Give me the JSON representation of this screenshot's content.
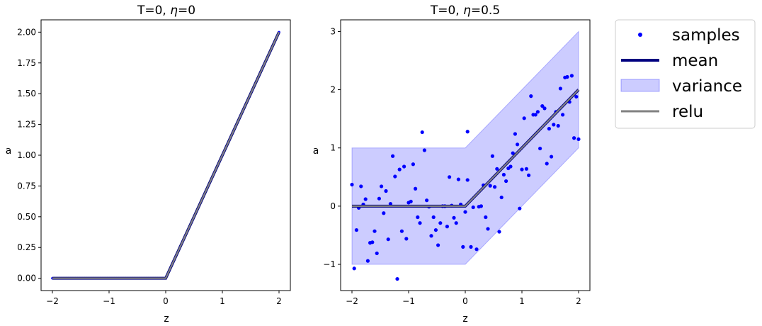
{
  "chart_data": [
    {
      "type": "line",
      "title_prefix": "T=0, ",
      "title_eta": "η",
      "title_suffix": "=0",
      "xlabel": "z",
      "ylabel": "a",
      "xlim": [
        -2.2,
        2.2
      ],
      "ylim": [
        -0.1,
        2.1
      ],
      "xticks": [
        -2,
        -1,
        0,
        1,
        2
      ],
      "xtick_labels": [
        "−2",
        "−1",
        "0",
        "1",
        "2"
      ],
      "yticks": [
        0,
        0.25,
        0.5,
        0.75,
        1.0,
        1.25,
        1.5,
        1.75,
        2.0
      ],
      "ytick_labels": [
        "0.00",
        "0.25",
        "0.50",
        "0.75",
        "1.00",
        "1.25",
        "1.50",
        "1.75",
        "2.00"
      ],
      "grid": false,
      "series": [
        {
          "name": "samples",
          "kind": "scatter",
          "color": "#0000ff",
          "note": "100 points on relu(z), z from -2 to 2",
          "n": 100
        },
        {
          "name": "mean",
          "kind": "line",
          "color": "#000080",
          "x": [
            -2,
            0,
            2
          ],
          "y": [
            0,
            0,
            2
          ]
        },
        {
          "name": "variance",
          "kind": "band",
          "color": "#0000ff",
          "alpha": 0.2,
          "halfwidth": 0
        },
        {
          "name": "relu",
          "kind": "line",
          "color": "#808080",
          "x": [
            -2,
            0,
            2
          ],
          "y": [
            0,
            0,
            2
          ]
        }
      ]
    },
    {
      "type": "line",
      "title_prefix": "T=0, ",
      "title_eta": "η",
      "title_suffix": "=0.5",
      "xlabel": "z",
      "ylabel": "a",
      "xlim": [
        -2.2,
        2.2
      ],
      "ylim": [
        -1.45,
        3.2
      ],
      "xticks": [
        -2,
        -1,
        0,
        1,
        2
      ],
      "xtick_labels": [
        "−2",
        "−1",
        "0",
        "1",
        "2"
      ],
      "yticks": [
        -1,
        0,
        1,
        2,
        3
      ],
      "ytick_labels": [
        "−1",
        "0",
        "1",
        "2",
        "3"
      ],
      "grid": false,
      "series": [
        {
          "name": "samples",
          "kind": "scatter",
          "color": "#0000ff",
          "points": [
            [
              -2.0,
              0.37
            ],
            [
              -1.96,
              -1.07
            ],
            [
              -1.92,
              -0.41
            ],
            [
              -1.88,
              -0.03
            ],
            [
              -1.84,
              0.34
            ],
            [
              -1.8,
              0.03
            ],
            [
              -1.76,
              0.12
            ],
            [
              -1.72,
              -0.94
            ],
            [
              -1.68,
              -0.63
            ],
            [
              -1.64,
              -0.62
            ],
            [
              -1.6,
              -0.43
            ],
            [
              -1.56,
              -0.81
            ],
            [
              -1.52,
              0.13
            ],
            [
              -1.48,
              0.34
            ],
            [
              -1.44,
              -0.12
            ],
            [
              -1.4,
              0.26
            ],
            [
              -1.36,
              -0.57
            ],
            [
              -1.32,
              0.04
            ],
            [
              -1.28,
              0.86
            ],
            [
              -1.24,
              0.51
            ],
            [
              -1.2,
              -1.25
            ],
            [
              -1.16,
              0.63
            ],
            [
              -1.12,
              -0.43
            ],
            [
              -1.08,
              0.68
            ],
            [
              -1.04,
              -0.56
            ],
            [
              -1.0,
              0.06
            ],
            [
              -0.96,
              0.08
            ],
            [
              -0.92,
              0.72
            ],
            [
              -0.88,
              0.3
            ],
            [
              -0.84,
              -0.19
            ],
            [
              -0.8,
              -0.29
            ],
            [
              -0.76,
              1.27
            ],
            [
              -0.72,
              0.96
            ],
            [
              -0.68,
              0.1
            ],
            [
              -0.64,
              -0.01
            ],
            [
              -0.6,
              -0.51
            ],
            [
              -0.56,
              -0.19
            ],
            [
              -0.52,
              -0.41
            ],
            [
              -0.48,
              -0.67
            ],
            [
              -0.44,
              -0.29
            ],
            [
              -0.4,
              0.0
            ],
            [
              -0.36,
              0.0
            ],
            [
              -0.32,
              -0.35
            ],
            [
              -0.28,
              0.5
            ],
            [
              -0.24,
              0.01
            ],
            [
              -0.2,
              -0.2
            ],
            [
              -0.16,
              -0.29
            ],
            [
              -0.12,
              0.46
            ],
            [
              -0.08,
              0.03
            ],
            [
              -0.04,
              -0.7
            ],
            [
              0.0,
              -0.1
            ],
            [
              0.04,
              1.28
            ],
            [
              0.04,
              0.45
            ],
            [
              0.1,
              -0.7
            ],
            [
              0.14,
              -0.02
            ],
            [
              0.2,
              -0.74
            ],
            [
              0.24,
              -0.01
            ],
            [
              0.28,
              0.0
            ],
            [
              0.32,
              0.36
            ],
            [
              0.36,
              -0.19
            ],
            [
              0.4,
              -0.39
            ],
            [
              0.44,
              0.35
            ],
            [
              0.48,
              0.86
            ],
            [
              0.52,
              0.33
            ],
            [
              0.56,
              0.64
            ],
            [
              0.6,
              -0.44
            ],
            [
              0.64,
              0.15
            ],
            [
              0.68,
              0.54
            ],
            [
              0.72,
              0.43
            ],
            [
              0.76,
              0.65
            ],
            [
              0.8,
              0.68
            ],
            [
              0.84,
              0.91
            ],
            [
              0.88,
              1.24
            ],
            [
              0.92,
              1.06
            ],
            [
              0.96,
              -0.04
            ],
            [
              1.0,
              0.63
            ],
            [
              1.04,
              1.51
            ],
            [
              1.08,
              0.64
            ],
            [
              1.12,
              0.53
            ],
            [
              1.16,
              1.89
            ],
            [
              1.2,
              1.57
            ],
            [
              1.24,
              1.57
            ],
            [
              1.28,
              1.62
            ],
            [
              1.32,
              0.99
            ],
            [
              1.36,
              1.72
            ],
            [
              1.4,
              1.68
            ],
            [
              1.44,
              0.73
            ],
            [
              1.48,
              1.33
            ],
            [
              1.52,
              0.85
            ],
            [
              1.56,
              1.4
            ],
            [
              1.6,
              1.62
            ],
            [
              1.64,
              1.38
            ],
            [
              1.68,
              2.02
            ],
            [
              1.72,
              1.57
            ],
            [
              1.76,
              2.21
            ],
            [
              1.8,
              2.22
            ],
            [
              1.84,
              1.79
            ],
            [
              1.88,
              2.24
            ],
            [
              1.92,
              1.17
            ],
            [
              1.96,
              1.88
            ],
            [
              2.0,
              1.15
            ]
          ]
        },
        {
          "name": "mean",
          "kind": "line",
          "color": "#000080",
          "x": [
            -2,
            0,
            2
          ],
          "y": [
            0,
            0,
            2
          ]
        },
        {
          "name": "variance",
          "kind": "band",
          "color": "#0000ff",
          "alpha": 0.2,
          "halfwidth": 1
        },
        {
          "name": "relu",
          "kind": "line",
          "color": "#808080",
          "x": [
            -2,
            0,
            2
          ],
          "y": [
            0,
            0,
            2
          ]
        }
      ]
    }
  ],
  "legend": {
    "placement": "outside-right",
    "entries": [
      {
        "label": "samples",
        "kind": "marker",
        "color": "#0000ff"
      },
      {
        "label": "mean",
        "kind": "line",
        "color": "#000080"
      },
      {
        "label": "variance",
        "kind": "patch",
        "color": "#0000ff"
      },
      {
        "label": "relu",
        "kind": "line",
        "color": "#808080"
      }
    ]
  }
}
